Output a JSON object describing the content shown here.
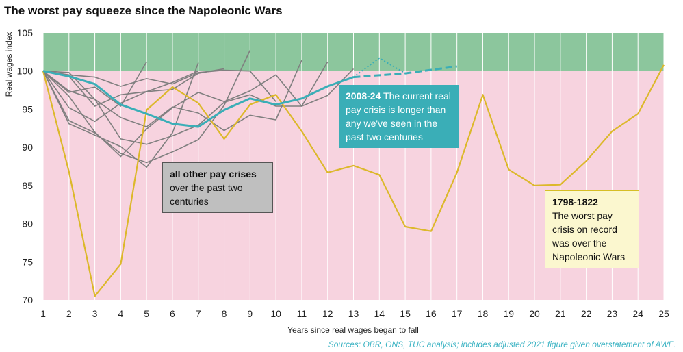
{
  "title": "The worst pay squeeze since the Napoleonic Wars",
  "source": "Sources: OBR, ONS, TUC analysis; includes adjusted 2021 figure given overstatement of AWE.",
  "annotations": {
    "current_bold": "2008-24",
    "current_text": "The current real pay crisis is longer than any we've seen in the past two centuries",
    "other_bold": "all other pay crises",
    "other_text": "over the past two centuries",
    "napoleonic_bold": "1798-1822",
    "napoleonic_text": "The worst pay crisis on record was over the Napoleonic Wars"
  },
  "colors": {
    "band_above_100": "#8cc69d",
    "band_below_100": "#f7d3df",
    "napoleonic": "#dcb82a",
    "current": "#3aaeb7",
    "others": "#7f7f7f"
  },
  "chart_data": {
    "type": "line",
    "xlabel": "Years since real wages began to fall",
    "ylabel": "Real wages index",
    "xlim": [
      1,
      25
    ],
    "ylim": [
      70,
      105
    ],
    "x_ticks": [
      1,
      2,
      3,
      4,
      5,
      6,
      7,
      8,
      9,
      10,
      11,
      12,
      13,
      14,
      15,
      16,
      17,
      18,
      19,
      20,
      21,
      22,
      23,
      24,
      25
    ],
    "y_ticks": [
      70,
      75,
      80,
      85,
      90,
      95,
      100,
      105
    ],
    "background_bands": [
      {
        "from": 100,
        "to": 105,
        "color": "#8cc69d"
      },
      {
        "from": 70,
        "to": 100,
        "color": "#f7d3df"
      }
    ],
    "series": [
      {
        "name": "1798-1822",
        "color": "#dcb82a",
        "x": [
          1,
          2,
          3,
          4,
          5,
          6,
          7,
          8,
          9,
          10,
          11,
          12,
          13,
          14,
          15,
          16,
          17,
          18,
          19,
          20,
          21,
          22,
          23,
          24,
          25
        ],
        "y": [
          100,
          86.8,
          70.5,
          74.7,
          94.9,
          97.9,
          95.8,
          91.1,
          95.6,
          96.9,
          92.1,
          86.7,
          87.6,
          86.4,
          79.6,
          79.0,
          86.7,
          96.9,
          87.1,
          85.0,
          85.1,
          88.2,
          92.1,
          94.4,
          100.8
        ]
      },
      {
        "name": "2008-24",
        "color": "#3aaeb7",
        "x": [
          1,
          2,
          3,
          4,
          5,
          6,
          7,
          8,
          9,
          10,
          11,
          12,
          13
        ],
        "y": [
          100,
          99.3,
          98.3,
          95.6,
          94.4,
          93.1,
          92.7,
          94.9,
          96.4,
          95.6,
          96.4,
          98.0,
          99.2
        ]
      },
      {
        "name": "",
        "color": "#3aaeb7",
        "dashed": true,
        "x": [
          13,
          15,
          17
        ],
        "y": [
          99.2,
          99.7,
          100.6
        ]
      },
      {
        "name": "",
        "color": "#3aaeb7",
        "dotted": true,
        "x": [
          13,
          14,
          15
        ],
        "y": [
          99.2,
          101.7,
          99.7
        ]
      },
      {
        "name": "",
        "color": "#7f7f7f",
        "x": [
          1,
          2,
          3,
          4,
          5,
          6,
          7,
          8,
          9,
          10
        ],
        "y": [
          100,
          99.5,
          99.2,
          98.0,
          99.0,
          98.3,
          99.8,
          100.1,
          100.0,
          96.0
        ]
      },
      {
        "name": "",
        "color": "#7f7f7f",
        "x": [
          1,
          2,
          3,
          4,
          5,
          6,
          7
        ],
        "y": [
          100,
          99.3,
          95.4,
          96.9,
          97.3,
          98.5,
          100.0
        ]
      },
      {
        "name": "",
        "color": "#7f7f7f",
        "x": [
          1,
          2,
          3,
          4,
          5
        ],
        "y": [
          100,
          97.2,
          97.9,
          95.4,
          101.2
        ]
      },
      {
        "name": "",
        "color": "#7f7f7f",
        "x": [
          1,
          2,
          3,
          4,
          5,
          6,
          7,
          8
        ],
        "y": [
          100,
          95.2,
          93.4,
          95.8,
          97.3,
          97.6,
          99.7,
          100.3
        ]
      },
      {
        "name": "",
        "color": "#7f7f7f",
        "x": [
          1,
          2,
          3,
          4,
          5,
          6,
          7,
          8,
          9
        ],
        "y": [
          100,
          93.5,
          91.9,
          89.2,
          88.0,
          89.4,
          91.0,
          95.5,
          102.7
        ]
      },
      {
        "name": "",
        "color": "#7f7f7f",
        "x": [
          1,
          2,
          3,
          4,
          5,
          6,
          7
        ],
        "y": [
          100,
          93.1,
          91.6,
          90.1,
          87.4,
          91.9,
          101.1
        ]
      },
      {
        "name": "",
        "color": "#7f7f7f",
        "x": [
          1,
          2,
          3,
          4,
          5,
          6,
          7,
          8,
          9,
          10,
          11
        ],
        "y": [
          100,
          99.8,
          96.3,
          93.9,
          92.7,
          95.3,
          94.5,
          92.2,
          94.2,
          93.6,
          101.4
        ]
      },
      {
        "name": "",
        "color": "#7f7f7f",
        "x": [
          1,
          2,
          3,
          4,
          5,
          6,
          7,
          8,
          9,
          10,
          11,
          12
        ],
        "y": [
          100,
          96.7,
          92.0,
          88.8,
          92.4,
          95.2,
          97.2,
          96.0,
          97.4,
          99.5,
          95.4,
          101.2
        ]
      },
      {
        "name": "",
        "color": "#7f7f7f",
        "x": [
          1,
          2,
          3,
          4,
          5,
          6,
          7,
          8,
          9,
          10,
          11,
          12,
          13
        ],
        "y": [
          100,
          97.4,
          96.3,
          91.1,
          90.4,
          91.5,
          92.9,
          95.9,
          96.9,
          95.4,
          95.4,
          96.8,
          100.3
        ]
      }
    ]
  }
}
